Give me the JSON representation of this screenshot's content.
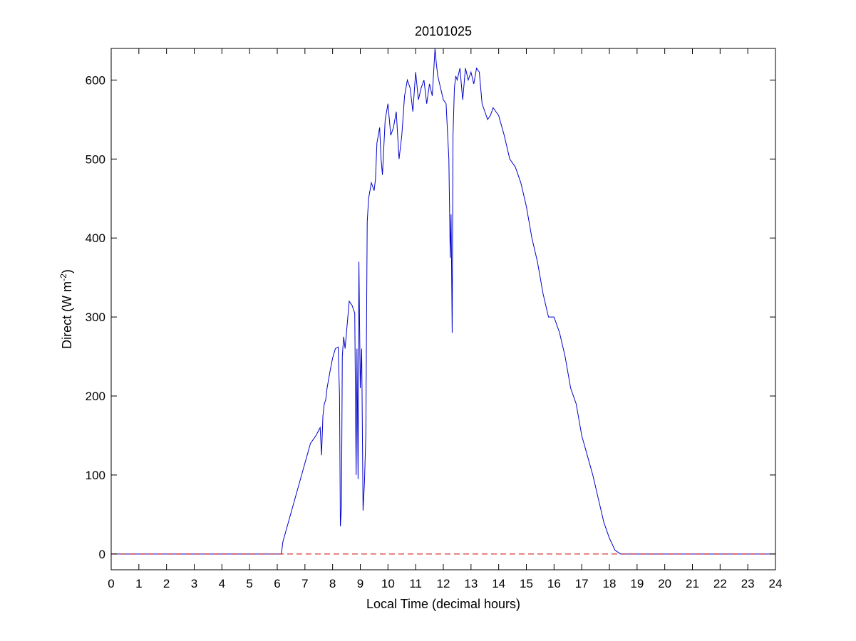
{
  "chart_data": {
    "type": "line",
    "title": "20101025",
    "xlabel": "Local Time (decimal hours)",
    "ylabel": "Direct (W m",
    "ylabel_sup": "-2",
    "ylabel_close": ")",
    "xlim": [
      0,
      24
    ],
    "ylim": [
      -20,
      640
    ],
    "xticks": [
      0,
      1,
      2,
      3,
      4,
      5,
      6,
      7,
      8,
      9,
      10,
      11,
      12,
      13,
      14,
      15,
      16,
      17,
      18,
      19,
      20,
      21,
      22,
      23,
      24
    ],
    "yticks": [
      0,
      100,
      200,
      300,
      400,
      500,
      600
    ],
    "grid": false,
    "legend": "none",
    "series": [
      {
        "color": "#0000cc",
        "style": "solid",
        "x": [
          0,
          6.15,
          6.2,
          6.4,
          6.6,
          6.8,
          7.0,
          7.2,
          7.4,
          7.55,
          7.6,
          7.65,
          7.7,
          7.75,
          7.8,
          7.9,
          8.0,
          8.1,
          8.2,
          8.25,
          8.28,
          8.32,
          8.35,
          8.4,
          8.45,
          8.5,
          8.55,
          8.6,
          8.7,
          8.8,
          8.85,
          8.88,
          8.92,
          8.95,
          9.0,
          9.05,
          9.1,
          9.15,
          9.2,
          9.25,
          9.3,
          9.4,
          9.5,
          9.55,
          9.6,
          9.7,
          9.75,
          9.8,
          9.9,
          10.0,
          10.1,
          10.2,
          10.3,
          10.4,
          10.5,
          10.6,
          10.7,
          10.8,
          10.9,
          11.0,
          11.1,
          11.2,
          11.3,
          11.4,
          11.5,
          11.6,
          11.7,
          11.75,
          11.8,
          11.9,
          12.0,
          12.1,
          12.2,
          12.25,
          12.28,
          12.32,
          12.35,
          12.4,
          12.45,
          12.5,
          12.6,
          12.7,
          12.8,
          12.9,
          13.0,
          13.1,
          13.2,
          13.3,
          13.4,
          13.5,
          13.6,
          13.7,
          13.8,
          13.9,
          14.0,
          14.2,
          14.4,
          14.6,
          14.8,
          15.0,
          15.2,
          15.4,
          15.6,
          15.8,
          16.0,
          16.2,
          16.4,
          16.6,
          16.8,
          17.0,
          17.2,
          17.4,
          17.6,
          17.8,
          18.0,
          18.2,
          18.4,
          18.6,
          18.7,
          24
        ],
        "y": [
          0,
          0,
          15,
          40,
          65,
          90,
          115,
          140,
          150,
          160,
          125,
          175,
          190,
          195,
          210,
          230,
          248,
          260,
          262,
          200,
          35,
          60,
          250,
          275,
          260,
          280,
          300,
          320,
          315,
          305,
          100,
          260,
          95,
          370,
          210,
          260,
          55,
          90,
          150,
          420,
          450,
          470,
          460,
          475,
          520,
          540,
          500,
          480,
          550,
          570,
          530,
          540,
          560,
          500,
          530,
          580,
          600,
          590,
          560,
          610,
          575,
          590,
          600,
          570,
          595,
          580,
          640,
          620,
          605,
          590,
          575,
          570,
          500,
          375,
          430,
          280,
          530,
          590,
          605,
          600,
          615,
          575,
          615,
          600,
          610,
          595,
          615,
          610,
          570,
          560,
          550,
          555,
          565,
          560,
          555,
          530,
          500,
          490,
          470,
          440,
          400,
          370,
          330,
          300,
          300,
          280,
          250,
          210,
          190,
          150,
          125,
          100,
          70,
          40,
          20,
          5,
          0,
          0,
          0,
          0
        ],
        "note_unused": ""
      },
      {
        "color": "#cc0000",
        "style": "dashed",
        "x": [
          0,
          24
        ],
        "y": [
          0,
          0
        ]
      }
    ]
  }
}
